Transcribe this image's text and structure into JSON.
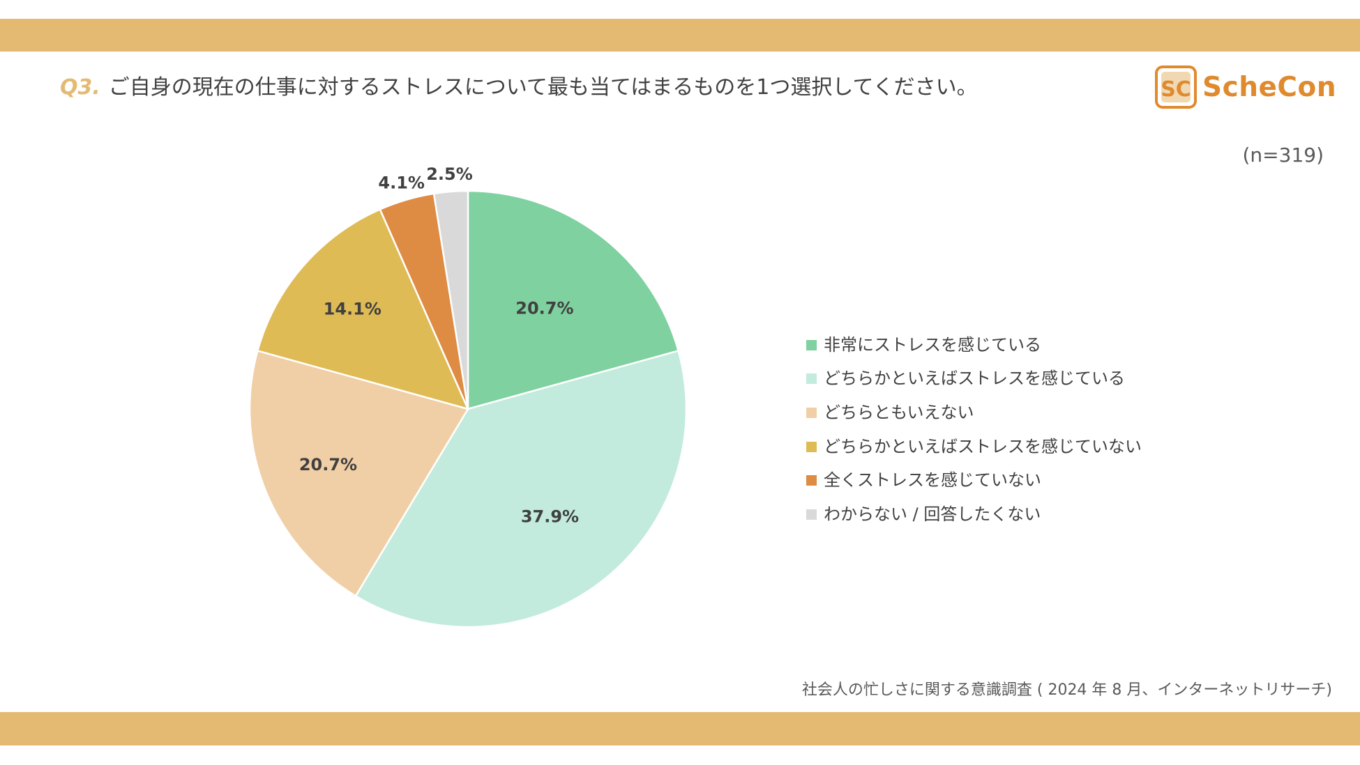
{
  "header": {
    "question_number": "Q3.",
    "question_text": "ご自身の現在の仕事に対するストレスについて最も当てはまるものを1つ選択してください。",
    "logo_text": "ScheCon",
    "logo_mark": "SC"
  },
  "sample_size": "(n=319)",
  "source": "社会人の忙しさに関する意識調査 ( 2024 年 8 月、インターネットリサーチ)",
  "colors": {
    "band": "#E4BA72",
    "question_number": "#E4BA72",
    "logo": "#E08A2E"
  },
  "chart_data": {
    "type": "pie",
    "title": "",
    "start_angle_deg": 0,
    "direction": "clockwise",
    "slices": [
      {
        "label": "非常にストレスを感じている",
        "value": 20.7,
        "display": "20.7%",
        "color": "#7FD1A0"
      },
      {
        "label": "どちらかといえばストレスを感じている",
        "value": 37.9,
        "display": "37.9%",
        "color": "#C2EBDD"
      },
      {
        "label": "どちらともいえない",
        "value": 20.7,
        "display": "20.7%",
        "color": "#F0CFA6"
      },
      {
        "label": "どちらかといえばストレスを感じていない",
        "value": 14.1,
        "display": "14.1%",
        "color": "#DFBB56"
      },
      {
        "label": "全くストレスを感じていない",
        "value": 4.1,
        "display": "4.1%",
        "color": "#DE8B44"
      },
      {
        "label": "わからない / 回答したくない",
        "value": 2.5,
        "display": "2.5%",
        "color": "#D9D9D9"
      }
    ],
    "legend_position": "right"
  }
}
